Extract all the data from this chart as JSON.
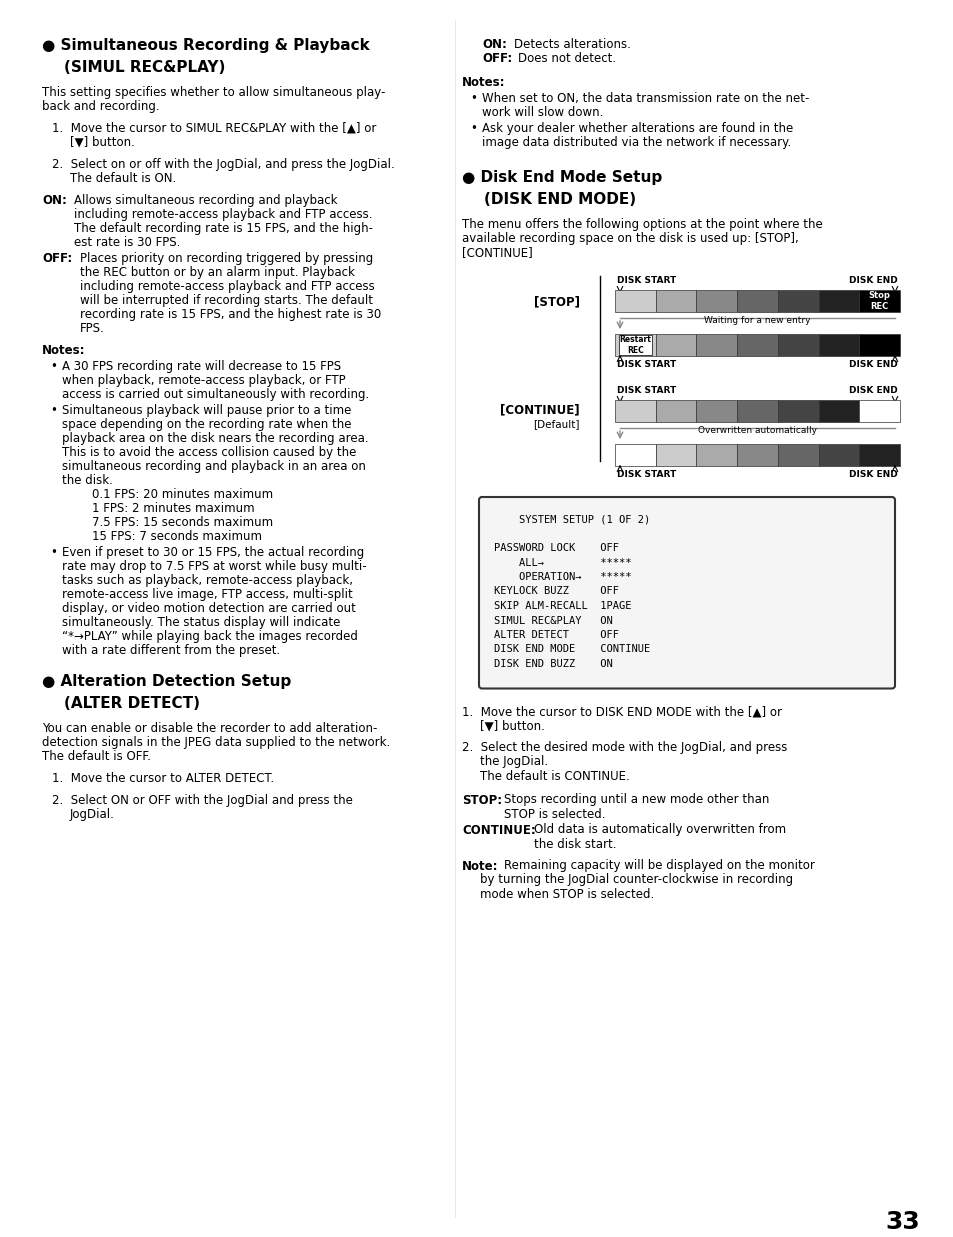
{
  "page_number": "33",
  "bg_color": "#ffffff",
  "system_setup_lines": [
    "    SYSTEM SETUP (1 OF 2)",
    "",
    "PASSWORD LOCK    OFF",
    "    ALL→         *****",
    "    OPERATION→   *****",
    "KEYLOCK BUZZ     OFF",
    "SKIP ALM-RECALL  1PAGE",
    "SIMUL REC&PLAY   ON",
    "ALTER DETECT     OFF",
    "DISK END MODE    CONTINUE",
    "DISK END BUZZ    ON"
  ]
}
